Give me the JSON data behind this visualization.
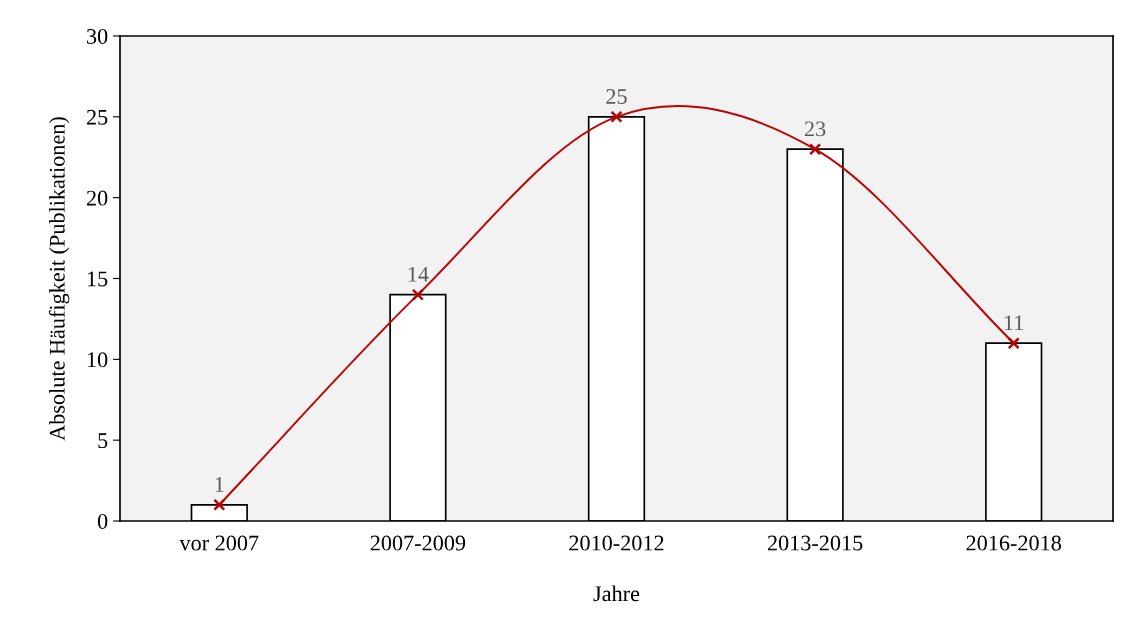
{
  "chart_data": {
    "type": "bar",
    "xlabel": "Jahre",
    "ylabel": "Absolute Häufigkeit (Publikationen)",
    "categories": [
      "vor 2007",
      "2007-2009",
      "2010-2012",
      "2013-2015",
      "2016-2018"
    ],
    "series": [
      {
        "color": "#ffffff",
        "values": [
          1,
          14,
          25,
          23,
          11
        ],
        "data_labels": true
      },
      {
        "type": "line",
        "color": "#c00000",
        "values": [
          1,
          14,
          25,
          23,
          11
        ],
        "marker": "cross",
        "line_style": "solid"
      }
    ],
    "ylim": [
      0,
      30
    ],
    "yticks": [
      0,
      5,
      10,
      15,
      20,
      25,
      30
    ],
    "grid": false,
    "legend": false
  }
}
